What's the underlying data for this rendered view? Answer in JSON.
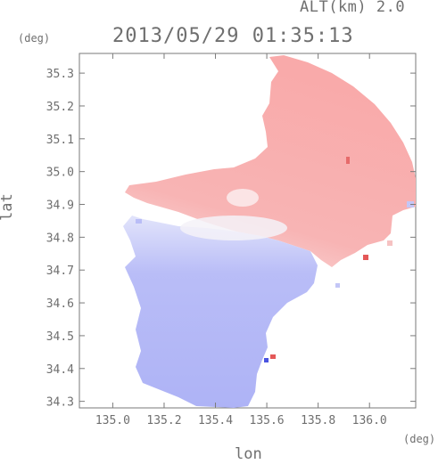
{
  "header": {
    "altitude_label": "ALT(km) 2.0",
    "timestamp": "2013/05/29 01:35:13"
  },
  "axes": {
    "x_title": "lon",
    "y_title": "lat",
    "x_unit": "(deg)",
    "y_unit": "(deg)",
    "x_ticks": [
      "135.0",
      "135.2",
      "135.4",
      "135.6",
      "135.8",
      "136.0"
    ],
    "y_ticks": [
      "35.3",
      "35.2",
      "35.1",
      "35.0",
      "34.9",
      "34.8",
      "34.7",
      "34.6",
      "34.5",
      "34.4",
      "34.3"
    ],
    "x_range": [
      134.87,
      136.18
    ],
    "y_range": [
      34.28,
      35.36
    ]
  },
  "map": {
    "radar_center": {
      "lon": 135.52,
      "lat": 34.82
    },
    "colors": {
      "receding": "#f9b0b0",
      "approaching": "#b2b6f6",
      "neutral": "#f4f2f8",
      "strong_receding": "#e45858",
      "strong_approaching": "#4a54e0",
      "frame": "#7a7a7a"
    }
  }
}
